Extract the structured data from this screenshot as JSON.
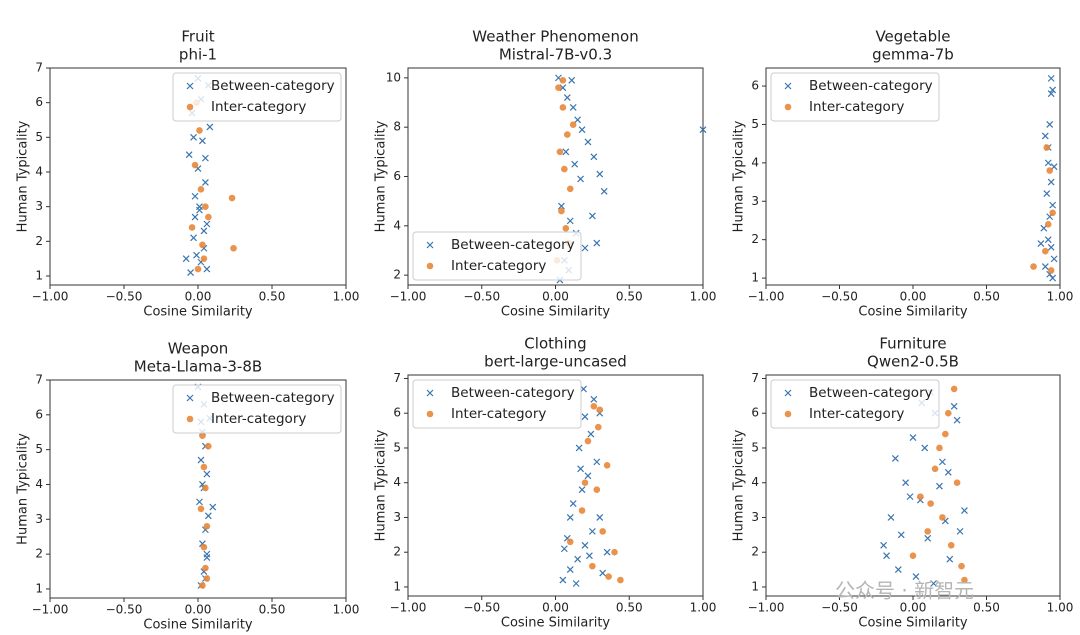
{
  "chart_data": [
    {
      "type": "scatter",
      "title": "Fruit",
      "subtitle": "phi-1",
      "xlabel": "Cosine Similarity",
      "ylabel": "Human Typicality",
      "xlim": [
        -1,
        1
      ],
      "ylim": [
        0.74,
        7.0
      ],
      "xticks": [
        {
          "value": -1,
          "label": "−1.00"
        },
        {
          "value": -0.5,
          "label": "−0.50"
        },
        {
          "value": 0,
          "label": "0.00"
        },
        {
          "value": 0.5,
          "label": "0.50"
        },
        {
          "value": 1,
          "label": "1.00"
        }
      ],
      "yticks": [
        1,
        2,
        3,
        4,
        5,
        6,
        7
      ],
      "legend": "upper right",
      "series": [
        {
          "name": "Between-category",
          "color": "#3a75b0",
          "marker": "x",
          "x": [
            -0.05,
            0.02,
            0.04,
            -0.03,
            0.06,
            0.01,
            -0.02,
            0.05,
            0.0,
            -0.06,
            0.03,
            0.08,
            -0.04,
            0.02,
            0.07,
            -0.01,
            0.04,
            -0.08,
            0.01,
            0.05,
            -0.03,
            0.0,
            0.06,
            -0.02
          ],
          "values": [
            1.1,
            1.4,
            1.8,
            2.1,
            2.5,
            2.9,
            3.3,
            3.7,
            4.1,
            4.5,
            4.9,
            5.3,
            5.7,
            6.1,
            6.5,
            1.6,
            2.3,
            1.5,
            3.0,
            4.4,
            5.0,
            6.7,
            1.2,
            2.7
          ]
        },
        {
          "name": "Inter-category",
          "color": "#e8873a",
          "marker": "o",
          "x": [
            0.0,
            0.03,
            -0.04,
            0.05,
            0.02,
            -0.02,
            0.07,
            0.01,
            0.23,
            0.24,
            0.04,
            -0.01
          ],
          "values": [
            1.2,
            1.9,
            2.4,
            3.0,
            3.5,
            4.2,
            2.7,
            5.2,
            3.25,
            1.8,
            1.5,
            6.0
          ]
        }
      ]
    },
    {
      "type": "scatter",
      "title": "Weather Phenomenon",
      "subtitle": "Mistral-7B-v0.3",
      "xlabel": "Cosine Similarity",
      "ylabel": "Human Typicality",
      "xlim": [
        -1,
        1
      ],
      "ylim": [
        1.6,
        10.4
      ],
      "xticks": [
        {
          "value": -1,
          "label": "−1.00"
        },
        {
          "value": -0.5,
          "label": "−0.50"
        },
        {
          "value": 0,
          "label": "0.00"
        },
        {
          "value": 0.5,
          "label": "0.50"
        },
        {
          "value": 1,
          "label": "1.00"
        }
      ],
      "yticks": [
        2,
        4,
        6,
        8,
        10
      ],
      "legend": "lower left",
      "series": [
        {
          "name": "Between-category",
          "color": "#3a75b0",
          "marker": "x",
          "x": [
            0.02,
            0.05,
            0.08,
            0.12,
            0.15,
            0.18,
            0.22,
            0.26,
            0.3,
            0.33,
            0.04,
            0.1,
            0.14,
            0.2,
            0.06,
            0.09,
            0.17,
            0.25,
            0.03,
            0.11,
            0.07,
            0.28,
            1.0,
            0.13
          ],
          "values": [
            10.0,
            9.6,
            9.2,
            8.8,
            8.3,
            7.9,
            7.4,
            6.8,
            6.1,
            5.4,
            4.8,
            4.2,
            3.7,
            3.1,
            2.6,
            2.2,
            5.9,
            4.4,
            1.8,
            9.9,
            7.0,
            3.3,
            7.9,
            6.5
          ]
        },
        {
          "name": "Inter-category",
          "color": "#e8873a",
          "marker": "o",
          "x": [
            0.02,
            0.05,
            0.08,
            0.03,
            0.06,
            0.1,
            0.04,
            0.07,
            0.09,
            0.01,
            0.05,
            0.12
          ],
          "values": [
            9.6,
            8.8,
            7.7,
            7.0,
            6.3,
            5.5,
            4.6,
            3.9,
            3.3,
            2.6,
            9.9,
            8.1
          ]
        }
      ]
    },
    {
      "type": "scatter",
      "title": "Vegetable",
      "subtitle": "gemma-7b",
      "xlabel": "Cosine Similarity",
      "ylabel": "Human Typicality",
      "xlim": [
        -1,
        1
      ],
      "ylim": [
        0.82,
        6.47
      ],
      "xticks": [
        {
          "value": -1,
          "label": "−1.00"
        },
        {
          "value": -0.5,
          "label": "−0.50"
        },
        {
          "value": 0,
          "label": "0.00"
        },
        {
          "value": 0.5,
          "label": "0.50"
        },
        {
          "value": 1,
          "label": "1.00"
        }
      ],
      "yticks": [
        1,
        2,
        3,
        4,
        5,
        6
      ],
      "legend": "upper left",
      "series": [
        {
          "name": "Between-category",
          "color": "#3a75b0",
          "marker": "x",
          "x": [
            0.94,
            0.95,
            0.93,
            0.9,
            0.92,
            0.96,
            0.94,
            0.91,
            0.95,
            0.93,
            0.89,
            0.92,
            0.94,
            0.96,
            0.9,
            0.93,
            0.87,
            0.95,
            0.92,
            0.94
          ],
          "values": [
            6.2,
            5.9,
            5.0,
            4.7,
            4.4,
            3.9,
            3.5,
            3.2,
            2.9,
            2.6,
            2.3,
            2.0,
            1.8,
            1.5,
            1.3,
            1.1,
            1.9,
            1.0,
            4.0,
            5.8
          ]
        },
        {
          "name": "Inter-category",
          "color": "#e8873a",
          "marker": "o",
          "x": [
            0.82,
            0.91,
            0.93,
            0.92,
            0.95,
            0.9,
            0.94
          ],
          "values": [
            1.3,
            4.4,
            3.8,
            2.4,
            2.7,
            1.7,
            1.2
          ]
        }
      ]
    },
    {
      "type": "scatter",
      "title": "Weapon",
      "subtitle": "Meta-Llama-3-8B",
      "xlabel": "Cosine Similarity",
      "ylabel": "Human Typicality",
      "xlim": [
        -1,
        1
      ],
      "ylim": [
        0.74,
        7.0
      ],
      "xticks": [
        {
          "value": -1,
          "label": "−1.00"
        },
        {
          "value": -0.5,
          "label": "−0.50"
        },
        {
          "value": 0,
          "label": "0.00"
        },
        {
          "value": 0.5,
          "label": "0.50"
        },
        {
          "value": 1,
          "label": "1.00"
        }
      ],
      "yticks": [
        1,
        2,
        3,
        4,
        5,
        6,
        7
      ],
      "legend": "upper right",
      "series": [
        {
          "name": "Between-category",
          "color": "#3a75b0",
          "marker": "x",
          "x": [
            0.02,
            0.04,
            0.06,
            0.03,
            0.05,
            0.07,
            0.01,
            0.04,
            0.06,
            0.02,
            0.05,
            0.03,
            0.08,
            0.04,
            0.1,
            0.0,
            0.06,
            0.03,
            0.05,
            0.02
          ],
          "values": [
            1.1,
            1.5,
            1.9,
            2.3,
            2.7,
            3.1,
            3.5,
            3.9,
            4.3,
            4.7,
            5.1,
            5.5,
            5.9,
            6.3,
            3.35,
            6.8,
            2.0,
            4.0,
            1.3,
            5.8
          ]
        },
        {
          "name": "Inter-category",
          "color": "#e8873a",
          "marker": "o",
          "x": [
            0.03,
            0.05,
            0.04,
            0.06,
            0.02,
            0.05,
            0.04,
            0.07,
            0.03,
            0.06
          ],
          "values": [
            1.1,
            1.6,
            2.2,
            2.8,
            3.3,
            3.9,
            4.5,
            5.1,
            5.4,
            1.3
          ]
        }
      ]
    },
    {
      "type": "scatter",
      "title": "Clothing",
      "subtitle": "bert-large-uncased",
      "xlabel": "Cosine Similarity",
      "ylabel": "Human Typicality",
      "xlim": [
        -1,
        1
      ],
      "ylim": [
        0.74,
        7.1
      ],
      "xticks": [
        {
          "value": -1,
          "label": "−1.00"
        },
        {
          "value": -0.5,
          "label": "−0.50"
        },
        {
          "value": 0,
          "label": "0.00"
        },
        {
          "value": 0.5,
          "label": "0.50"
        },
        {
          "value": 1,
          "label": "1.00"
        }
      ],
      "yticks": [
        1,
        2,
        3,
        4,
        5,
        6,
        7
      ],
      "legend": "upper left",
      "series": [
        {
          "name": "Between-category",
          "color": "#3a75b0",
          "marker": "x",
          "x": [
            0.05,
            0.1,
            0.15,
            0.2,
            0.25,
            0.3,
            0.35,
            0.12,
            0.18,
            0.22,
            0.28,
            0.08,
            0.16,
            0.24,
            0.14,
            0.2,
            0.26,
            0.1,
            0.32,
            0.19,
            0.23,
            0.17,
            0.06,
            0.3
          ],
          "values": [
            1.2,
            1.5,
            1.8,
            2.2,
            2.6,
            3.0,
            2.0,
            3.4,
            3.8,
            4.2,
            4.6,
            2.4,
            5.0,
            5.4,
            1.1,
            5.9,
            6.4,
            3.0,
            1.4,
            6.7,
            1.9,
            4.4,
            2.1,
            6.0
          ]
        },
        {
          "name": "Inter-category",
          "color": "#e8873a",
          "marker": "o",
          "x": [
            0.26,
            0.3,
            0.22,
            0.35,
            0.28,
            0.18,
            0.32,
            0.4,
            0.44,
            0.25,
            0.2,
            0.29,
            0.1,
            0.36
          ],
          "values": [
            6.2,
            6.1,
            5.2,
            4.5,
            3.8,
            3.2,
            2.6,
            2.0,
            1.2,
            1.6,
            4.0,
            5.6,
            2.3,
            1.3
          ]
        }
      ]
    },
    {
      "type": "scatter",
      "title": "Furniture",
      "subtitle": "Qwen2-0.5B",
      "xlabel": "Cosine Similarity",
      "ylabel": "Human Typicality",
      "xlim": [
        -1,
        1
      ],
      "ylim": [
        0.74,
        7.1
      ],
      "xticks": [
        {
          "value": -1,
          "label": "−1.00"
        },
        {
          "value": -0.5,
          "label": "−0.50"
        },
        {
          "value": 0,
          "label": "0.00"
        },
        {
          "value": 0.5,
          "label": "0.50"
        },
        {
          "value": 1,
          "label": "1.00"
        }
      ],
      "yticks": [
        1,
        2,
        3,
        4,
        5,
        6,
        7
      ],
      "legend": "upper left",
      "series": [
        {
          "name": "Between-category",
          "color": "#3a75b0",
          "marker": "x",
          "x": [
            -0.2,
            -0.15,
            -0.1,
            -0.05,
            0.0,
            0.05,
            0.1,
            0.15,
            0.2,
            0.25,
            0.3,
            0.35,
            -0.12,
            0.02,
            0.12,
            0.22,
            -0.08,
            0.08,
            0.18,
            0.28,
            -0.02,
            0.14,
            0.24,
            -0.18,
            0.06,
            0.32
          ],
          "values": [
            2.2,
            3.0,
            1.5,
            4.0,
            5.3,
            3.5,
            2.4,
            6.0,
            4.6,
            1.8,
            5.8,
            3.2,
            4.7,
            1.3,
            6.6,
            2.9,
            2.5,
            5.0,
            3.9,
            6.2,
            3.6,
            1.1,
            4.3,
            1.9,
            6.3,
            2.6
          ]
        },
        {
          "name": "Inter-category",
          "color": "#e8873a",
          "marker": "o",
          "x": [
            0.28,
            0.22,
            0.15,
            0.3,
            0.05,
            0.2,
            0.1,
            0.26,
            0.33,
            0.0,
            0.18,
            0.35,
            0.12,
            0.24
          ],
          "values": [
            6.7,
            5.4,
            4.4,
            4.0,
            3.6,
            3.0,
            2.6,
            2.2,
            1.6,
            1.9,
            5.0,
            1.2,
            3.4,
            6.0
          ]
        }
      ]
    }
  ],
  "watermark": "公众号 · 新智元"
}
